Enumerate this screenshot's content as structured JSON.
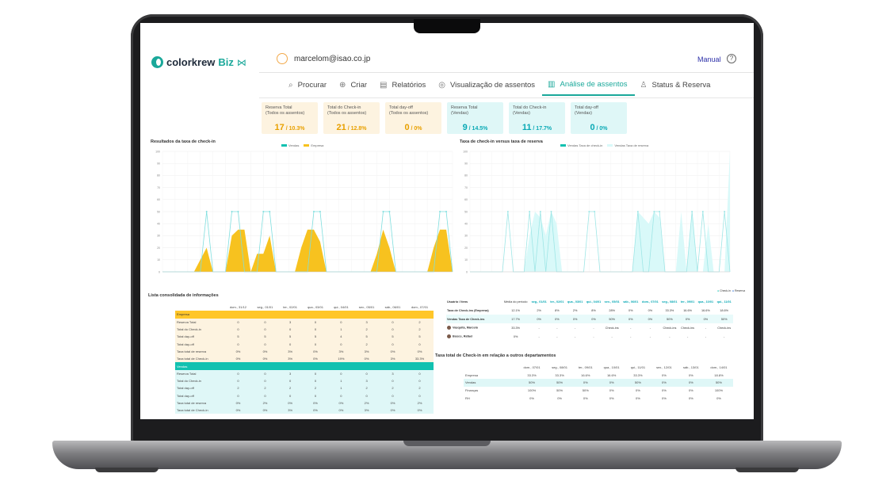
{
  "header": {
    "brand": "colorkrew",
    "brand_suffix": "Biz",
    "brand_icon": "ribbon-icon",
    "user_email": "marcelom@isao.co.jp",
    "manual_label": "Manual",
    "help_label": "?"
  },
  "tabs": [
    {
      "label": "Procurar",
      "icon": "search-icon"
    },
    {
      "label": "Criar",
      "icon": "plus-circle-icon"
    },
    {
      "label": "Relatórios",
      "icon": "document-icon"
    },
    {
      "label": "Visualização de assentos",
      "icon": "target-icon"
    },
    {
      "label": "Análise de assentos",
      "icon": "bar-chart-icon",
      "active": true
    },
    {
      "label": "Status & Reserva",
      "icon": "user-icon"
    }
  ],
  "summary_cards": [
    {
      "label_1": "Reserva Total",
      "label_2": "(Todos os assentos)",
      "big": "17",
      "small": " / 10.3%",
      "kind": "total"
    },
    {
      "label_1": "Total do Check-in",
      "label_2": "(Todos os assentos)",
      "big": "21",
      "small": " / 12.8%",
      "kind": "total"
    },
    {
      "label_1": "Total day-off",
      "label_2": "(Todos os assentos)",
      "big": "0",
      "small": " / 0%",
      "kind": "total"
    },
    {
      "label_1": "Reserva Total",
      "label_2": "(Vendas)",
      "big": "9",
      "small": " / 14.5%",
      "kind": "sales"
    },
    {
      "label_1": "Total do Check-in",
      "label_2": "(Vendas)",
      "big": "11",
      "small": " / 17.7%",
      "kind": "sales"
    },
    {
      "label_1": "Total day-off",
      "label_2": "(Vendas)",
      "big": "0",
      "small": " / 0%",
      "kind": "sales"
    }
  ],
  "chart_data": [
    {
      "type": "area",
      "title": "Resultados da taxa de check-in",
      "legend": [
        "Vendas",
        "Empresa"
      ],
      "ylim": [
        0,
        100
      ],
      "y_ticks": [
        0,
        10,
        20,
        30,
        40,
        50,
        60,
        70,
        80,
        90,
        100
      ],
      "series": [
        {
          "name": "Vendas",
          "type": "line",
          "color": "#7fdede",
          "values": [
            0,
            0,
            0,
            0,
            0,
            0,
            0,
            50,
            0,
            0,
            0,
            50,
            50,
            0,
            0,
            0,
            50,
            50,
            0,
            0,
            0,
            0,
            0,
            0,
            50,
            50,
            0,
            0,
            0,
            0,
            0,
            0,
            0,
            0,
            0,
            50,
            50,
            0,
            0,
            0,
            0,
            0,
            0,
            0,
            50,
            50,
            0
          ]
        },
        {
          "name": "Empresa",
          "type": "area",
          "color": "#f7c21f",
          "values": [
            0,
            0,
            0,
            0,
            0,
            0,
            10,
            20,
            0,
            0,
            0,
            30,
            35,
            35,
            0,
            15,
            15,
            30,
            0,
            0,
            0,
            0,
            20,
            35,
            35,
            25,
            0,
            0,
            0,
            0,
            0,
            0,
            0,
            0,
            15,
            35,
            20,
            0,
            0,
            0,
            0,
            0,
            0,
            20,
            35,
            35,
            0
          ]
        }
      ]
    },
    {
      "type": "area",
      "title": "Taxa de check-in versus taxa de reserva",
      "legend": [
        "Vendas Taxa de check-in",
        "Vendas Taxa de reserva"
      ],
      "ylim": [
        0,
        100
      ],
      "y_ticks": [
        0,
        10,
        20,
        30,
        40,
        50,
        60,
        70,
        80,
        90,
        100
      ],
      "series": [
        {
          "name": "Vendas Taxa de check-in",
          "type": "line",
          "color": "#9ee6e6",
          "values": [
            0,
            0,
            0,
            0,
            0,
            0,
            0,
            50,
            0,
            0,
            0,
            50,
            0,
            50,
            0,
            50,
            0,
            0,
            0,
            0,
            0,
            0,
            50,
            50,
            0,
            0,
            0,
            0,
            0,
            0,
            0,
            50,
            0,
            0,
            50,
            50,
            0,
            0,
            0,
            0,
            0,
            50,
            0,
            50,
            0,
            0,
            0,
            50,
            0
          ]
        },
        {
          "name": "Vendas Taxa de reserva",
          "type": "area",
          "color": "#d9f9f9",
          "values": [
            0,
            0,
            0,
            0,
            0,
            0,
            0,
            0,
            0,
            0,
            0,
            30,
            50,
            45,
            30,
            50,
            40,
            0,
            0,
            0,
            0,
            0,
            0,
            0,
            0,
            0,
            0,
            0,
            0,
            0,
            0,
            50,
            45,
            40,
            50,
            45,
            0,
            0,
            0,
            50,
            0,
            50,
            0,
            0,
            40,
            0,
            0,
            0,
            100
          ]
        }
      ]
    }
  ],
  "consolidated": {
    "title": "Lista consolidada de informações",
    "columns": [
      "dom., 31/12",
      "seg., 01/01",
      "ter., 02/01",
      "qua., 03/01",
      "qui., 04/01",
      "sex., 05/01",
      "sáb., 06/01",
      "dom., 07/01"
    ],
    "groups": [
      {
        "name": "Empresa",
        "kind": "e",
        "rows": [
          {
            "label": "Reserva Total",
            "cells": [
              "0",
              "0",
              "3",
              "0",
              "0",
              "3",
              "0",
              "2"
            ]
          },
          {
            "label": "Total do Check-in",
            "cells": [
              "0",
              "0",
              "0",
              "0",
              "1",
              "2",
              "0",
              "2"
            ]
          },
          {
            "label": "Total day-off",
            "cells": [
              "5",
              "5",
              "5",
              "5",
              "4",
              "5",
              "5",
              "5"
            ]
          },
          {
            "label": "Total day-off",
            "cells": [
              "0",
              "0",
              "0",
              "0",
              "0",
              "2",
              "0",
              "0"
            ]
          },
          {
            "label": "Taxa total de reserva",
            "cells": [
              "0%",
              "0%",
              "3%",
              "0%",
              "3%",
              "3%",
              "0%",
              "0%"
            ]
          },
          {
            "label": "Taxa total de Check-in",
            "cells": [
              "0%",
              "0%",
              "3%",
              "0%",
              "19%",
              "0%",
              "3%",
              "33.3%"
            ]
          }
        ]
      },
      {
        "name": "Vendas",
        "kind": "v",
        "rows": [
          {
            "label": "Reserva Total",
            "cells": [
              "0",
              "0",
              "3",
              "0",
              "0",
              "0",
              "3",
              "0"
            ]
          },
          {
            "label": "Total do Check-in",
            "cells": [
              "0",
              "0",
              "0",
              "0",
              "1",
              "3",
              "0",
              "0"
            ]
          },
          {
            "label": "Total day-off",
            "cells": [
              "2",
              "2",
              "2",
              "2",
              "1",
              "2",
              "2",
              "2"
            ]
          },
          {
            "label": "Total day-off",
            "cells": [
              "0",
              "0",
              "0",
              "0",
              "0",
              "0",
              "0",
              "0"
            ]
          },
          {
            "label": "Taxa total de reserva",
            "cells": [
              "0%",
              "2%",
              "0%",
              "0%",
              "0%",
              "2%",
              "0%",
              "2%"
            ]
          },
          {
            "label": "Taxa total de Check-in",
            "cells": [
              "0%",
              "0%",
              "3%",
              "0%",
              "0%",
              "3%",
              "0%",
              "0%"
            ]
          }
        ]
      }
    ]
  },
  "users_table": {
    "legend_checkin": "Check-in",
    "legend_reserve": "Reserva",
    "col_user": "Usuário / Itens",
    "col_avg": "Média do período",
    "columns": [
      "seg., 01/01",
      "ter., 02/01",
      "qua., 03/01",
      "qui., 04/01",
      "sex., 05/01",
      "sáb., 06/01",
      "dom., 07/01",
      "seg., 08/01",
      "ter., 09/01",
      "qua., 10/01",
      "qui., 11/01"
    ],
    "rows": [
      {
        "label": "Taxa de Check-ins (Empresa)",
        "avg": "12.1%",
        "cells": [
          "2%",
          "8%",
          "2%",
          "8%",
          "28%",
          "0%",
          "0%",
          "33.3%",
          "16.6%",
          "16.6%",
          "18.6%"
        ],
        "hl": false
      },
      {
        "label": "Vendas Taxa de Check-ins",
        "avg": "17.7%",
        "cells": [
          "0%",
          "0%",
          "0%",
          "0%",
          "50%",
          "0%",
          "0%",
          "50%",
          "0%",
          "0%",
          "50%"
        ],
        "hl": true
      },
      {
        "label": "Vasquita, Marcelo",
        "avg": "33.3%",
        "cells": [
          "-",
          "-",
          "-",
          "-",
          "Check-ins",
          "-",
          "-",
          "Check-ins",
          "Check-ins",
          "-",
          "Check-ins"
        ],
        "hl": false,
        "face": true
      },
      {
        "label": "Bosco, Rafael",
        "avg": "0%",
        "cells": [
          "-",
          "-",
          "-",
          "-",
          "-",
          "-",
          "-",
          "-",
          "-",
          "-",
          "-"
        ],
        "hl": false,
        "face": true
      }
    ]
  },
  "departments": {
    "title": "Taxa total de Check-in em relação a outros departamentos",
    "columns": [
      "dom., 07/01",
      "seg., 08/01",
      "ter., 09/01",
      "qua., 10/01",
      "qui., 11/01",
      "sex., 12/01",
      "sáb., 13/01",
      "dom., 14/01"
    ],
    "rows": [
      {
        "label": "Empresa",
        "cells": [
          "33.3%",
          "33.3%",
          "16.6%",
          "16.6%",
          "33.3%",
          "0%",
          "0%",
          "18.8%"
        ],
        "sel": false
      },
      {
        "label": "Vendas",
        "cells": [
          "50%",
          "50%",
          "0%",
          "0%",
          "50%",
          "0%",
          "0%",
          "50%"
        ],
        "sel": true
      },
      {
        "label": "Finanças",
        "cells": [
          "100%",
          "50%",
          "50%",
          "0%",
          "0%",
          "0%",
          "0%",
          "100%"
        ],
        "sel": false
      },
      {
        "label": "RH",
        "cells": [
          "0%",
          "0%",
          "0%",
          "0%",
          "0%",
          "0%",
          "0%",
          "0%"
        ],
        "sel": false
      }
    ]
  }
}
